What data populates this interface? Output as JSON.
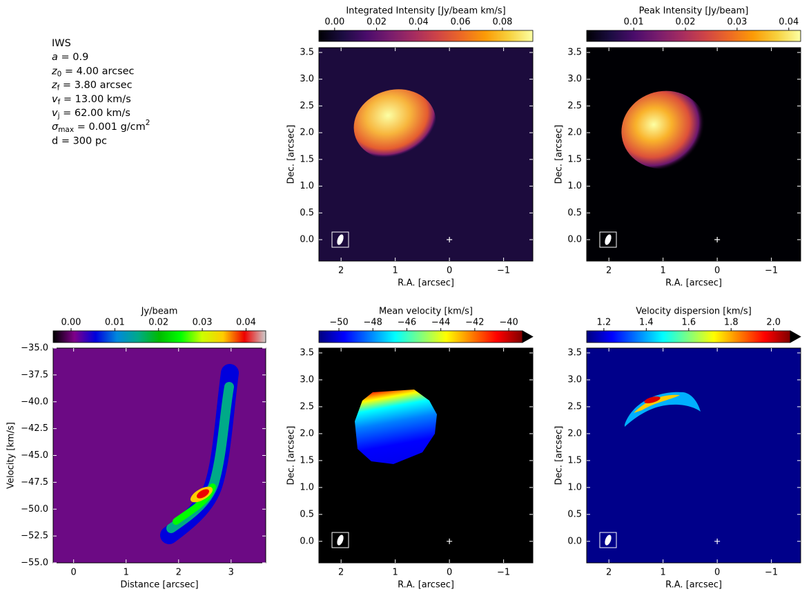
{
  "parameters": {
    "lines": [
      [
        {
          "text": "IWS"
        }
      ],
      [
        {
          "text": "a",
          "style": "italic"
        },
        {
          "text": " = 0.9"
        }
      ],
      [
        {
          "text": "z",
          "style": "italic"
        },
        {
          "text": "0",
          "style": "sub"
        },
        {
          "text": " = 4.00 arcsec"
        }
      ],
      [
        {
          "text": "z",
          "style": "italic"
        },
        {
          "text": "f",
          "style": "sub"
        },
        {
          "text": " = 3.80 arcsec"
        }
      ],
      [
        {
          "text": "v",
          "style": "italic"
        },
        {
          "text": "f",
          "style": "sub"
        },
        {
          "text": " = 13.00 km/s"
        }
      ],
      [
        {
          "text": "v",
          "style": "italic"
        },
        {
          "text": "j",
          "style": "sub"
        },
        {
          "text": " = 62.00 km/s"
        }
      ],
      [
        {
          "text": "σ",
          "style": "italic"
        },
        {
          "text": "max",
          "style": "sub"
        },
        {
          "text": " = 0.001 g/cm"
        },
        {
          "text": "2",
          "style": "sup"
        }
      ],
      [
        {
          "text": "d = 300 pc"
        }
      ]
    ]
  },
  "chart_data": [
    {
      "type": "image",
      "title": "Integrated Intensity [Jy/beam km/s]",
      "colormap": [
        "#000004",
        "#1b0c41",
        "#4a0c6b",
        "#781c6d",
        "#a52c60",
        "#cf4446",
        "#ed6925",
        "#fb9b06",
        "#f7d13d",
        "#fcffa4"
      ],
      "clim": [
        -0.0075,
        0.0945
      ],
      "cticks": [
        {
          "value": 0,
          "label": "0.00"
        },
        0.02,
        0.04,
        0.06,
        0.08
      ],
      "xlabel": "R.A. [arcsec]",
      "ylabel": "Dec. [arcsec]",
      "xlim": [
        2.41,
        -1.54
      ],
      "xticks": [
        2,
        1,
        0,
        {
          "value": -1,
          "label": "−1"
        }
      ],
      "ylim": [
        -0.4,
        3.59
      ],
      "yticks": [
        {
          "value": 0,
          "label": "0.0"
        },
        0.5,
        {
          "value": 1,
          "label": "1.0"
        },
        1.5,
        {
          "value": 2,
          "label": "2.0"
        },
        2.5,
        {
          "value": 3,
          "label": "3.0"
        },
        3.5
      ]
    },
    {
      "type": "image",
      "title": "Peak Intensity [Jy/beam]",
      "colormap": [
        "#000004",
        "#1b0c41",
        "#4a0c6b",
        "#781c6d",
        "#a52c60",
        "#cf4446",
        "#ed6925",
        "#fb9b06",
        "#f7d13d",
        "#fcffa4"
      ],
      "clim": [
        0.0009,
        0.0423
      ],
      "cticks": [
        0.01,
        0.02,
        0.03,
        0.04
      ],
      "xlabel": "R.A. [arcsec]",
      "ylabel": "Dec. [arcsec]",
      "xlim": [
        2.41,
        -1.54
      ],
      "xticks": [
        2,
        1,
        0,
        {
          "value": -1,
          "label": "−1"
        }
      ],
      "ylim": [
        -0.4,
        3.59
      ],
      "yticks": [
        {
          "value": 0,
          "label": "0.0"
        },
        0.5,
        {
          "value": 1,
          "label": "1.0"
        },
        1.5,
        {
          "value": 2,
          "label": "2.0"
        },
        2.5,
        {
          "value": 3,
          "label": "3.0"
        },
        3.5
      ]
    },
    {
      "type": "pv",
      "title": "Jy/beam",
      "colormap": [
        "#000000",
        "#7f0089",
        "#0000dd",
        "#0088dd",
        "#00aa88",
        "#00bb00",
        "#00ff00",
        "#ccff00",
        "#ffcc00",
        "#ee0000",
        "#cccccc"
      ],
      "clim": [
        -0.0041,
        0.0445
      ],
      "cticks": [
        {
          "value": 0,
          "label": "0.00"
        },
        0.01,
        0.02,
        0.03,
        0.04
      ],
      "xlabel": "Distance [arcsec]",
      "ylabel": "Velocity [km/s]",
      "xlim": [
        -0.39,
        3.66
      ],
      "xticks": [
        0,
        1,
        2,
        3
      ],
      "ylim": [
        -55,
        -35
      ],
      "yticks": [
        {
          "value": -35,
          "label": "−35.0"
        },
        {
          "value": -37.5,
          "label": "−37.5"
        },
        {
          "value": -40,
          "label": "−40.0"
        },
        {
          "value": -42.5,
          "label": "−42.5"
        },
        {
          "value": -45,
          "label": "−45.0"
        },
        {
          "value": -47.5,
          "label": "−47.5"
        },
        {
          "value": -50,
          "label": "−50.0"
        },
        {
          "value": -52.5,
          "label": "−52.5"
        },
        {
          "value": -55,
          "label": "−55.0"
        }
      ]
    },
    {
      "type": "image",
      "title": "Mean velocity [km/s]",
      "colormap": [
        "#00007f",
        "#0000ff",
        "#007fff",
        "#00ffff",
        "#7fff7f",
        "#ffff00",
        "#ff7f00",
        "#ff0000",
        "#7f0000"
      ],
      "extend": "max",
      "extend_color": "#000000",
      "clim": [
        -51.18,
        -39.19
      ],
      "cticks": [
        {
          "value": -50,
          "label": "−50"
        },
        {
          "value": -48,
          "label": "−48"
        },
        {
          "value": -46,
          "label": "−46"
        },
        {
          "value": -44,
          "label": "−44"
        },
        {
          "value": -42,
          "label": "−42"
        },
        {
          "value": -40,
          "label": "−40"
        }
      ],
      "xlabel": "R.A. [arcsec]",
      "ylabel": "Dec. [arcsec]",
      "xlim": [
        2.41,
        -1.54
      ],
      "xticks": [
        2,
        1,
        0,
        {
          "value": -1,
          "label": "−1"
        }
      ],
      "ylim": [
        -0.4,
        3.59
      ],
      "yticks": [
        {
          "value": 0,
          "label": "0.0"
        },
        0.5,
        {
          "value": 1,
          "label": "1.0"
        },
        1.5,
        {
          "value": 2,
          "label": "2.0"
        },
        2.5,
        {
          "value": 3,
          "label": "3.0"
        },
        3.5
      ]
    },
    {
      "type": "image",
      "title": "Velocity dispersion [km/s]",
      "colormap": [
        "#00007f",
        "#0000ff",
        "#007fff",
        "#00ffff",
        "#7fff7f",
        "#ffff00",
        "#ff7f00",
        "#ff0000",
        "#7f0000"
      ],
      "extend": "max",
      "extend_color": "#000000",
      "clim": [
        1.119,
        2.079
      ],
      "cticks": [
        1.2,
        1.4,
        1.6,
        1.8,
        {
          "value": 2,
          "label": "2.0"
        }
      ],
      "xlabel": "R.A. [arcsec]",
      "ylabel": "Dec. [arcsec]",
      "xlim": [
        2.41,
        -1.54
      ],
      "xticks": [
        2,
        1,
        0,
        {
          "value": -1,
          "label": "−1"
        }
      ],
      "ylim": [
        -0.4,
        3.59
      ],
      "yticks": [
        {
          "value": 0,
          "label": "0.0"
        },
        0.5,
        {
          "value": 1,
          "label": "1.0"
        },
        1.5,
        {
          "value": 2,
          "label": "2.0"
        },
        2.5,
        {
          "value": 3,
          "label": "3.0"
        },
        3.5
      ]
    }
  ]
}
